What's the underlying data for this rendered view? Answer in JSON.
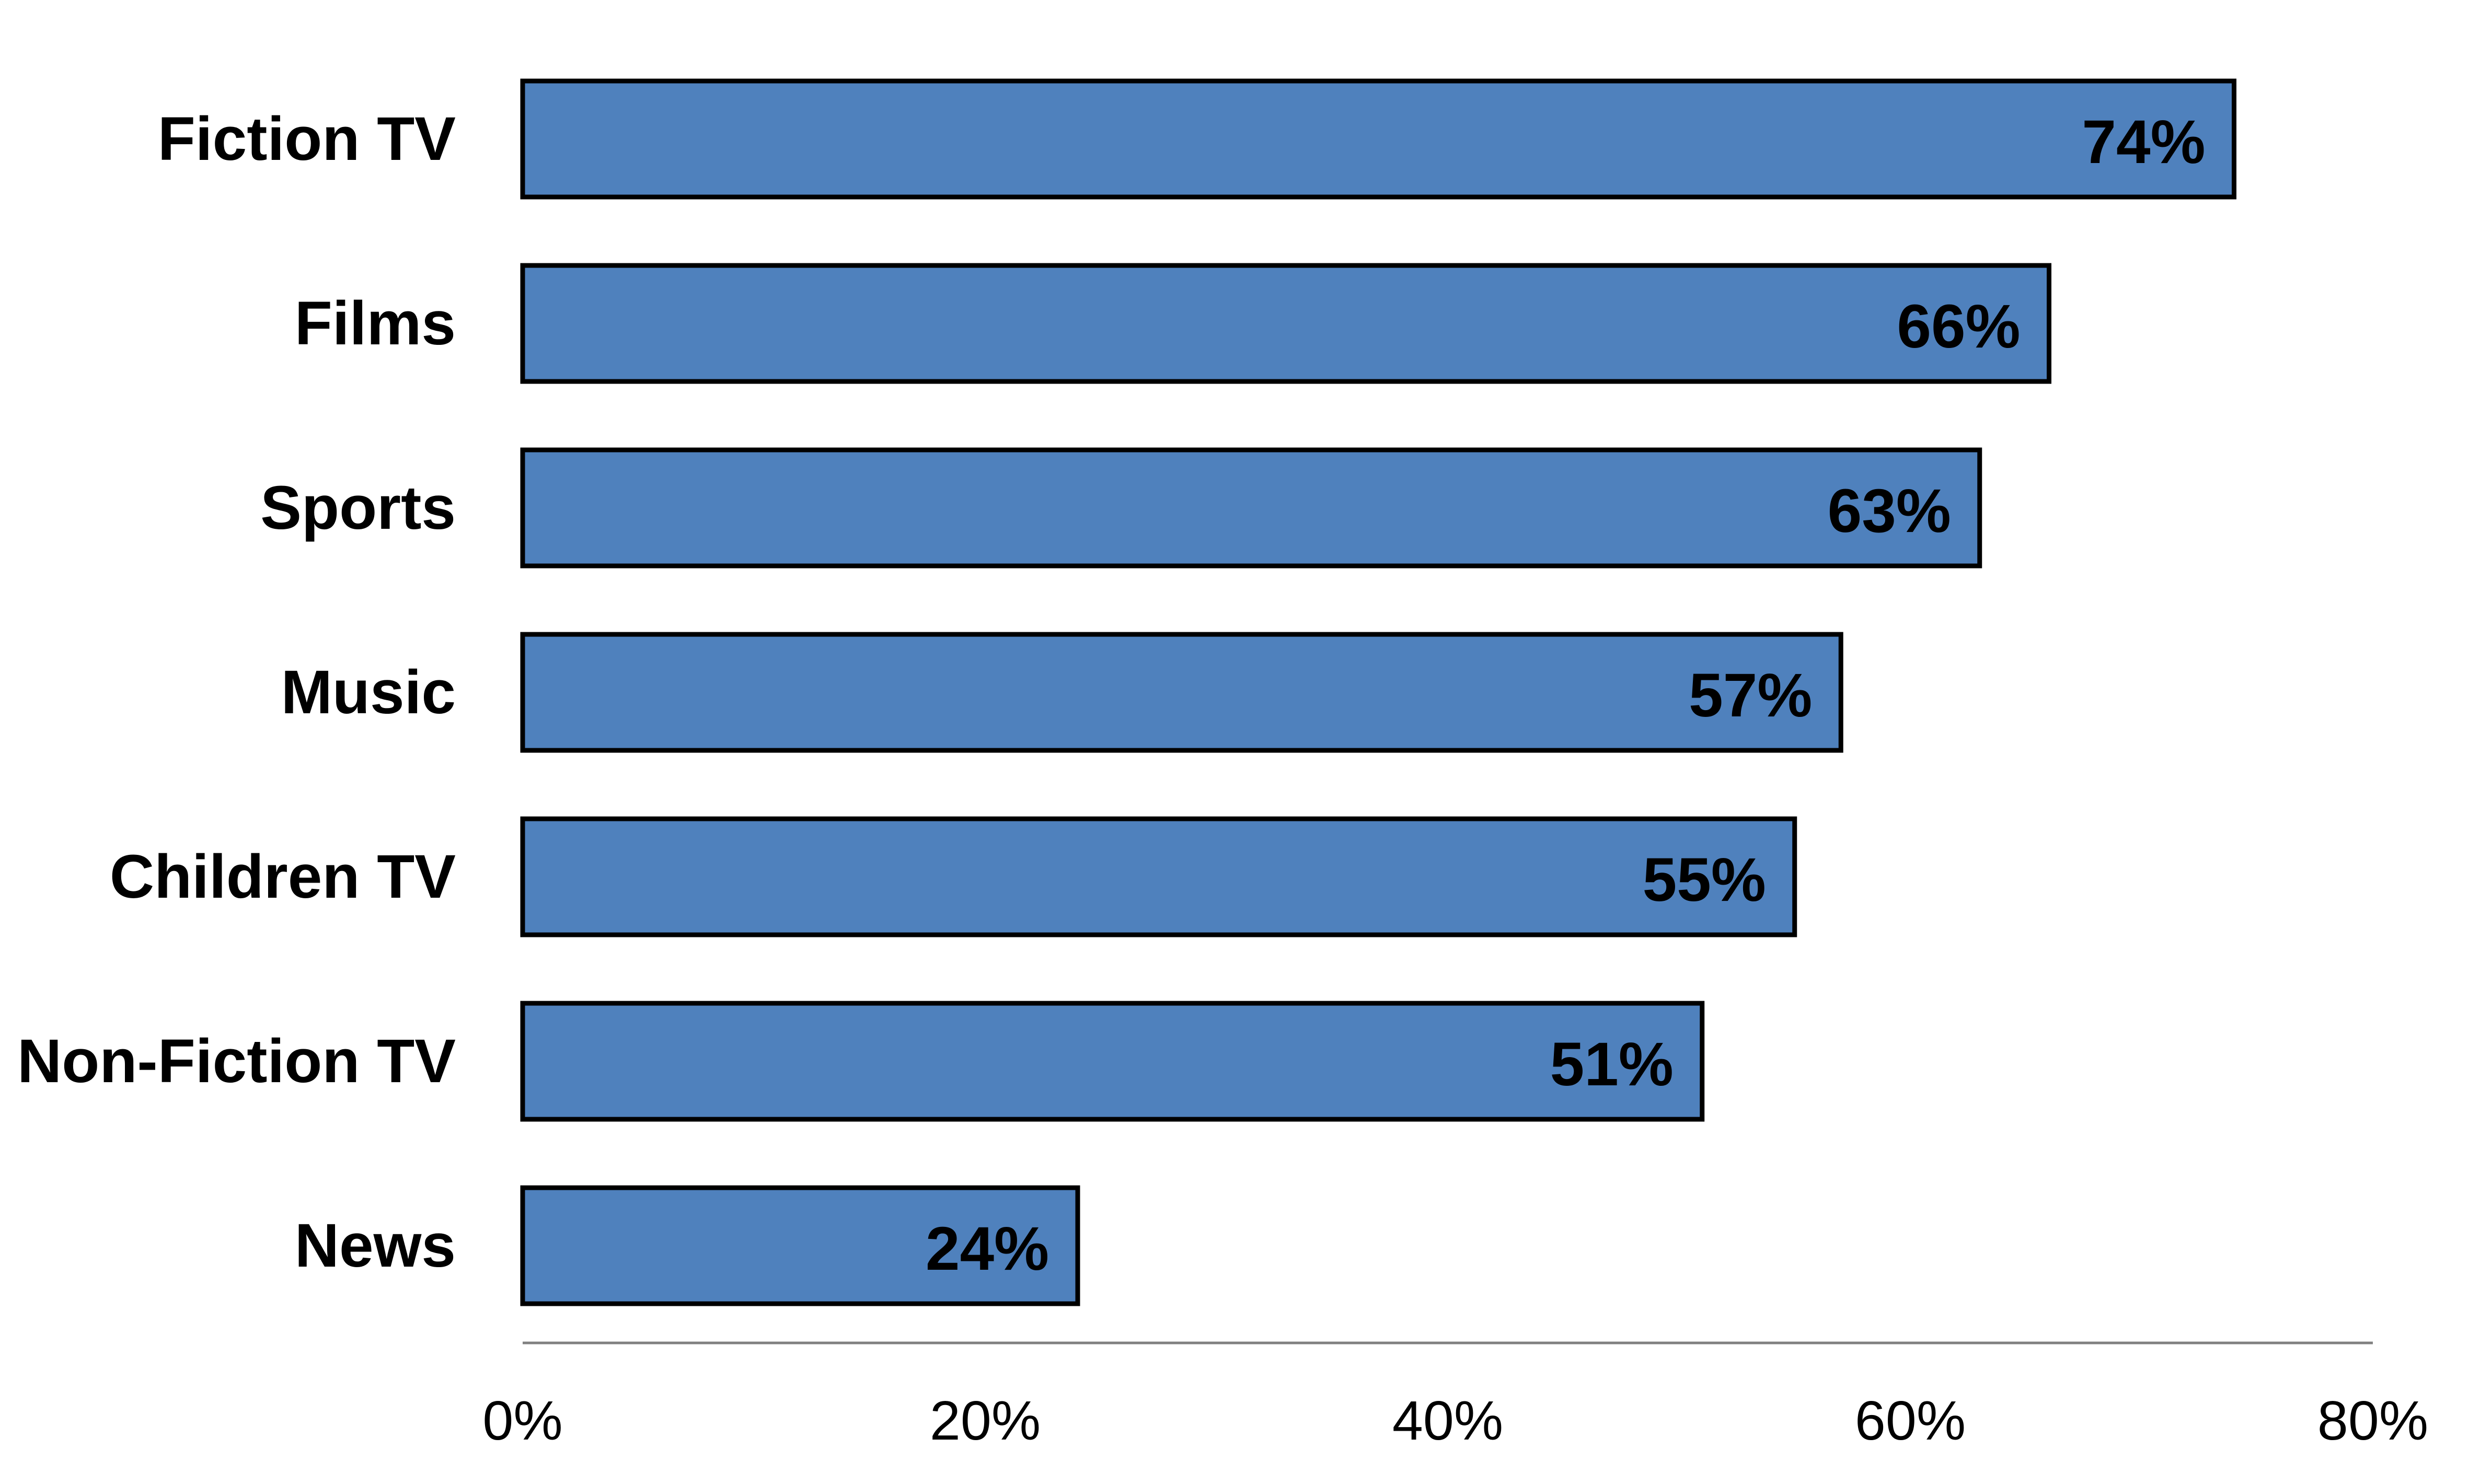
{
  "chart_data": {
    "type": "bar",
    "orientation": "horizontal",
    "categories": [
      "Fiction TV",
      "Films",
      "Sports",
      "Music",
      "Children TV",
      "Non-Fiction TV",
      "News"
    ],
    "values": [
      74,
      66,
      63,
      57,
      55,
      51,
      24
    ],
    "value_labels": [
      "74%",
      "66%",
      "63%",
      "57%",
      "55%",
      "51%",
      "24%"
    ],
    "x_ticks": [
      "0%",
      "20%",
      "40%",
      "60%",
      "80%"
    ],
    "x_tick_values": [
      0,
      20,
      40,
      60,
      80
    ],
    "xlim": [
      0,
      80
    ],
    "unit": "%",
    "grid": false,
    "legend": "none",
    "title": "",
    "xlabel": "",
    "ylabel": "",
    "colors": {
      "bar_fill": "#4F81BD",
      "bar_stroke": "#000000",
      "axis_line": "#808080"
    }
  }
}
